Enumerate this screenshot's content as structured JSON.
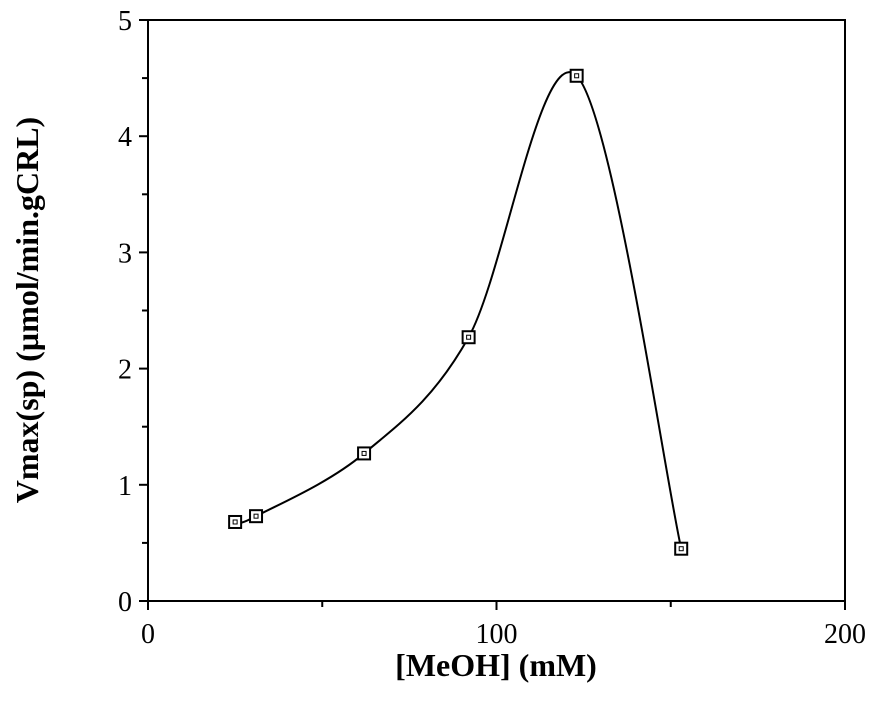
{
  "chart_data": {
    "type": "scatter",
    "title": "",
    "xlabel": "[MeOH]  (mM)",
    "ylabel": "Vmax(sp)   (µmol/min.gCRL)",
    "xlim": [
      0,
      200
    ],
    "ylim": [
      0,
      5
    ],
    "x_ticks": [
      0,
      100,
      200
    ],
    "y_ticks": [
      0,
      1,
      2,
      3,
      4,
      5
    ],
    "x_tick_labels": [
      "0",
      "100",
      "200"
    ],
    "y_tick_labels": [
      "0",
      "1",
      "2",
      "3",
      "4",
      "5"
    ],
    "grid": false,
    "marker": "open-square",
    "smooth_curve": true,
    "series": [
      {
        "x": [
          25,
          31,
          62,
          92,
          123,
          153
        ],
        "y": [
          0.68,
          0.73,
          1.27,
          2.27,
          4.52,
          0.45
        ]
      }
    ]
  }
}
